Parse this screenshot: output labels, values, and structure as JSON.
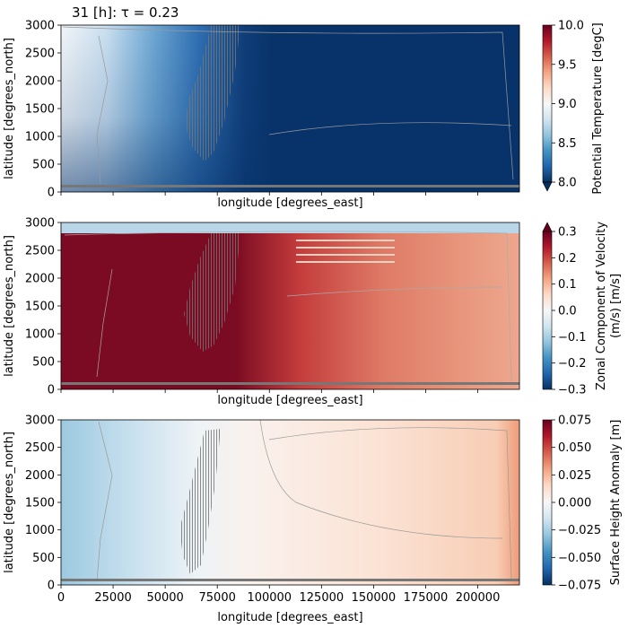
{
  "title": "31 [h]: τ = 0.23",
  "chart_data": [
    {
      "type": "heatmap",
      "variable": "Potential Temperature [degC]",
      "xlabel": "longitude [degrees_east]",
      "ylabel": "latitude [degrees_north]",
      "xlim": [
        0,
        220000
      ],
      "ylim": [
        0,
        3000
      ],
      "x_ticks": [
        0,
        25000,
        50000,
        75000,
        100000,
        125000,
        150000,
        175000,
        200000
      ],
      "x_tick_labels_shown": false,
      "y_ticks": [
        0,
        500,
        1000,
        1500,
        2000,
        2500,
        3000
      ],
      "colorbar": {
        "label": "Potential Temperature [degC]",
        "range": [
          8.0,
          10.0
        ],
        "ticks": [
          "8.0",
          "8.5",
          "9.0",
          "9.5",
          "10.0"
        ],
        "extend": "min",
        "colormap": "RdBu_r"
      }
    },
    {
      "type": "heatmap",
      "variable": "Zonal Component of Velocity (m/s) [m/s]",
      "xlabel": "longitude [degrees_east]",
      "ylabel": "latitude [degrees_north]",
      "xlim": [
        0,
        220000
      ],
      "ylim": [
        0,
        3000
      ],
      "x_ticks": [
        0,
        25000,
        50000,
        75000,
        100000,
        125000,
        150000,
        175000,
        200000
      ],
      "x_tick_labels_shown": false,
      "y_ticks": [
        0,
        500,
        1000,
        1500,
        2000,
        2500,
        3000
      ],
      "colorbar": {
        "label_line1": "Zonal Component of Velocity",
        "label_line2": "(m/s) [m/s]",
        "range": [
          -0.3,
          0.3
        ],
        "ticks": [
          "−0.3",
          "−0.2",
          "−0.1",
          "0.0",
          "0.1",
          "0.2",
          "0.3"
        ],
        "extend": "max",
        "colormap": "RdBu_r"
      }
    },
    {
      "type": "heatmap",
      "variable": "Surface Height Anomaly [m]",
      "xlabel": "longitude [degrees_east]",
      "ylabel": "latitude [degrees_north]",
      "xlim": [
        0,
        220000
      ],
      "ylim": [
        0,
        3000
      ],
      "x_ticks": [
        0,
        25000,
        50000,
        75000,
        100000,
        125000,
        150000,
        175000,
        200000
      ],
      "x_tick_labels": [
        "0",
        "25000",
        "50000",
        "75000",
        "100000",
        "125000",
        "150000",
        "175000",
        "200000"
      ],
      "x_tick_labels_shown": true,
      "y_ticks": [
        0,
        500,
        1000,
        1500,
        2000,
        2500,
        3000
      ],
      "colorbar": {
        "label": "Surface Height Anomaly [m]",
        "range": [
          -0.075,
          0.075
        ],
        "ticks": [
          "−0.075",
          "−0.050",
          "−0.025",
          "0.000",
          "0.025",
          "0.050",
          "0.075"
        ],
        "extend": "neither",
        "colormap": "RdBu_r"
      }
    }
  ]
}
